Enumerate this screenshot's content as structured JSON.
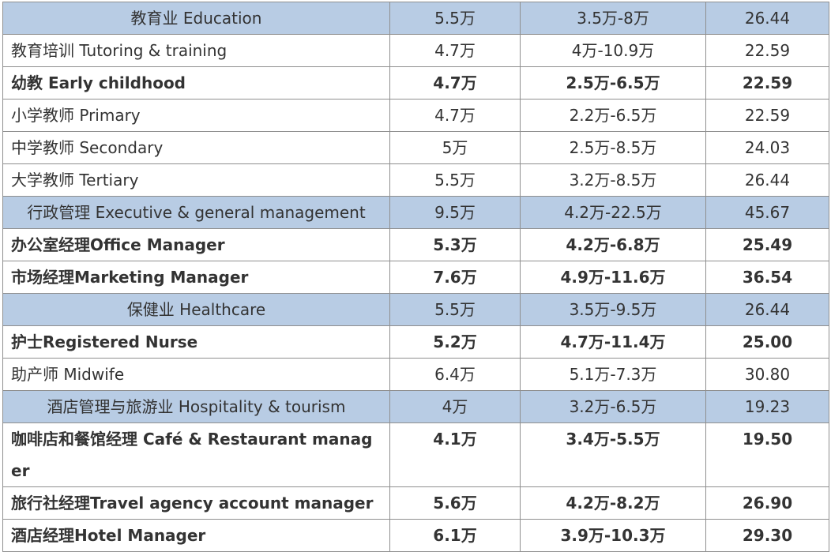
{
  "rows": [
    {
      "kind": "category",
      "bold": false,
      "job": "教育业  Education",
      "median": "5.5万",
      "range": "3.5万-8万",
      "hourly": "26.44"
    },
    {
      "kind": "item",
      "bold": false,
      "job": "教育培训 Tutoring  & training",
      "median": "4.7万",
      "range": "4万-10.9万",
      "hourly": "22.59"
    },
    {
      "kind": "item",
      "bold": true,
      "job": "幼教  Early childhood",
      "median": "4.7万",
      "range": "2.5万-6.5万",
      "hourly": "22.59"
    },
    {
      "kind": "item",
      "bold": false,
      "job": "小学教师 Primary",
      "median": "4.7万",
      "range": "2.2万-6.5万",
      "hourly": "22.59"
    },
    {
      "kind": "item",
      "bold": false,
      "job": "中学教师  Secondary",
      "median": "5万",
      "range": "2.5万-8.5万",
      "hourly": "24.03"
    },
    {
      "kind": "item",
      "bold": false,
      "job": "大学教师 Tertiary",
      "median": "5.5万",
      "range": "3.2万-8.5万",
      "hourly": "26.44"
    },
    {
      "kind": "category",
      "bold": false,
      "job": "行政管理  Executive & general management",
      "median": "9.5万",
      "range": "4.2万-22.5万",
      "hourly": "45.67"
    },
    {
      "kind": "item",
      "bold": true,
      "job": "办公室经理Office Manager",
      "median": "5.3万",
      "range": "4.2万-6.8万",
      "hourly": "25.49"
    },
    {
      "kind": "item",
      "bold": true,
      "job": "市场经理Marketing Manager",
      "median": "7.6万",
      "range": "4.9万-11.6万",
      "hourly": "36.54"
    },
    {
      "kind": "category",
      "bold": false,
      "job": "保健业  Healthcare",
      "median": "5.5万",
      "range": "3.5万-9.5万",
      "hourly": "26.44"
    },
    {
      "kind": "item",
      "bold": true,
      "job": "护士Registered Nurse",
      "median": "5.2万",
      "range": "4.7万-11.4万",
      "hourly": "25.00"
    },
    {
      "kind": "item",
      "bold": false,
      "job": "助产师 Midwife",
      "median": "6.4万",
      "range": "5.1万-7.3万",
      "hourly": "30.80"
    },
    {
      "kind": "category",
      "bold": false,
      "job": "酒店管理与旅游业  Hospitality & tourism",
      "median": "4万",
      "range": "3.2万-6.5万",
      "hourly": "19.23"
    },
    {
      "kind": "item",
      "bold": true,
      "wrapped": true,
      "job": "咖啡店和餐馆经理  Café & Restaurant manager",
      "median": "4.1万",
      "range": "3.4万-5.5万",
      "hourly": "19.50"
    },
    {
      "kind": "item",
      "bold": true,
      "job": "旅行社经理Travel agency account manager",
      "median": "5.6万",
      "range": "4.2万-8.2万",
      "hourly": "26.90"
    },
    {
      "kind": "item",
      "bold": true,
      "job": "酒店经理Hotel Manager",
      "median": "6.1万",
      "range": "3.9万-10.3万",
      "hourly": "29.30"
    }
  ],
  "colors": {
    "category_bg": "#b8cce4",
    "border": "#8f8f8f",
    "text": "#333333"
  }
}
